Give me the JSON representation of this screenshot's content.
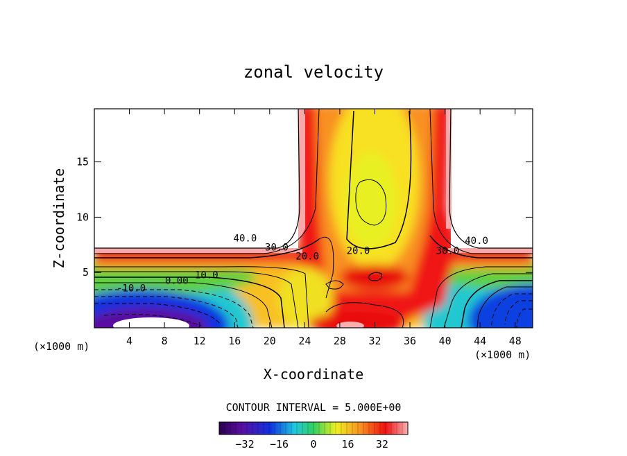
{
  "chart_data": {
    "type": "contour",
    "title": "zonal velocity",
    "xlabel": "X-coordinate",
    "ylabel": "Z-coordinate",
    "x_unit_left": "(×1000 m)",
    "x_unit_right": "(×1000 m)",
    "xlim": [
      0,
      50
    ],
    "ylim": [
      0,
      19.8
    ],
    "x_ticks": [
      4,
      8,
      12,
      16,
      20,
      24,
      28,
      32,
      36,
      40,
      44,
      48
    ],
    "y_ticks": [
      5,
      10,
      15
    ],
    "contour_interval_label": "CONTOUR INTERVAL = 5.000E+00",
    "contour_labels": [
      {
        "text": "40.0",
        "x": 17.2,
        "z": 8.1
      },
      {
        "text": "30.0",
        "x": 20.8,
        "z": 7.3
      },
      {
        "text": "20.0",
        "x": 24.3,
        "z": 6.5
      },
      {
        "text": "10.0",
        "x": 12.8,
        "z": 4.8
      },
      {
        "text": "0.00",
        "x": 9.4,
        "z": 4.3
      },
      {
        "text": "-10.0",
        "x": 4.2,
        "z": 3.6
      },
      {
        "text": "20.0",
        "x": 30.1,
        "z": 7.0
      },
      {
        "text": "30.0",
        "x": 40.3,
        "z": 7.0
      },
      {
        "text": "40.0",
        "x": 43.6,
        "z": 7.9
      }
    ],
    "colorbar": {
      "min": -44,
      "max": 44,
      "ticks": [
        -32,
        -16,
        0,
        16,
        32
      ]
    },
    "colors": {
      "very_negative": "#5a0fa0",
      "negative": "#1030e0",
      "zero": "#30d060",
      "moderate": "#f0f020",
      "strong": "#f01010",
      "very_strong": "#f8a8a8"
    }
  }
}
